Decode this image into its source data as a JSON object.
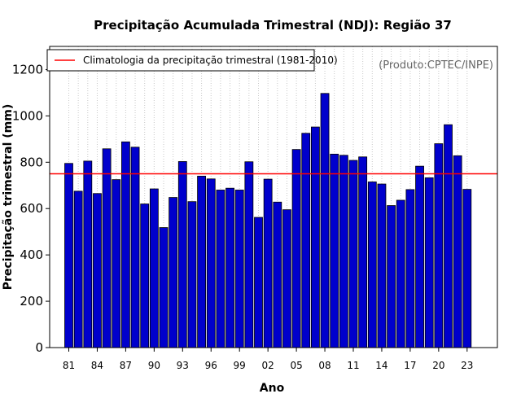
{
  "chart_data": {
    "type": "bar",
    "title": "Precipitação Acumulada Trimestral (NDJ): Região 37",
    "xlabel": "Ano",
    "ylabel": "Precipitação trimestral (mm)",
    "ylim": [
      0,
      1300
    ],
    "yticks": [
      0,
      200,
      400,
      600,
      800,
      1000,
      1200
    ],
    "years": [
      1981,
      1982,
      1983,
      1984,
      1985,
      1986,
      1987,
      1988,
      1989,
      1990,
      1991,
      1992,
      1993,
      1994,
      1995,
      1996,
      1997,
      1998,
      1999,
      2000,
      2001,
      2002,
      2003,
      2004,
      2005,
      2006,
      2007,
      2008,
      2009,
      2010,
      2011,
      2012,
      2013,
      2014,
      2015,
      2016,
      2017,
      2018,
      2019,
      2020,
      2021,
      2022,
      2023
    ],
    "xticks": [
      "81",
      "84",
      "87",
      "90",
      "93",
      "96",
      "99",
      "02",
      "05",
      "08",
      "11",
      "14",
      "17",
      "20",
      "23"
    ],
    "xtick_years": [
      1981,
      1984,
      1987,
      1990,
      1993,
      1996,
      1999,
      2002,
      2005,
      2008,
      2011,
      2014,
      2017,
      2020,
      2023
    ],
    "values": [
      795,
      675,
      805,
      665,
      858,
      725,
      888,
      865,
      620,
      685,
      518,
      648,
      803,
      630,
      740,
      728,
      680,
      688,
      680,
      802,
      562,
      727,
      628,
      595,
      855,
      925,
      952,
      1097,
      835,
      830,
      808,
      823,
      715,
      706,
      613,
      636,
      682,
      783,
      733,
      880,
      962,
      828,
      683
    ],
    "climatology": 750,
    "bar_color": "#0000cc",
    "line_color": "#ff0000",
    "legend": {
      "label": "Climatologia da precipitação trimestral (1981-2010)",
      "position": "top-left"
    },
    "credit": "(Produto:CPTEC/INPE)",
    "grid": "vertical dotted"
  }
}
